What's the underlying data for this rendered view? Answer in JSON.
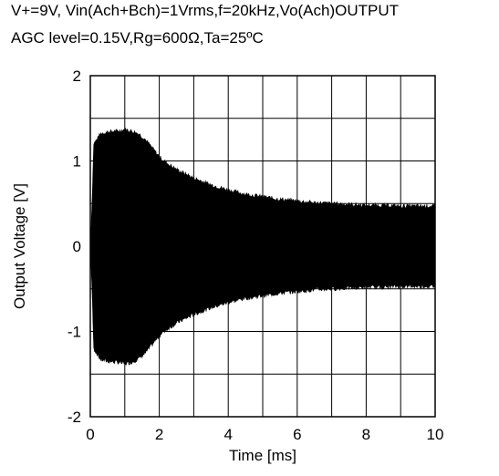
{
  "conditions": {
    "line1": "V+=9V, Vin(Ach+Bch)=1Vrms,f=20kHz,Vo(Ach)OUTPUT",
    "line2": "AGC level=0.15V,Rg=600Ω,Ta=25ºC"
  },
  "chart_data": {
    "type": "area",
    "title": "",
    "xlabel": "Time   [ms]",
    "ylabel": "Output Voltage   [V]",
    "xlim": [
      0,
      10
    ],
    "ylim": [
      -2,
      2
    ],
    "xticks": [
      "0",
      "2",
      "4",
      "6",
      "8",
      "10"
    ],
    "yticks": [
      "2",
      "1",
      "0",
      "-1",
      "-2"
    ],
    "grid": true,
    "series": [
      {
        "color": "#000000",
        "x": [
          0.0,
          0.05,
          0.1,
          0.3,
          0.5,
          0.8,
          1.0,
          1.2,
          1.4,
          1.6,
          1.8,
          2.0,
          2.2,
          2.5,
          3.0,
          3.5,
          4.0,
          4.5,
          5.0,
          5.5,
          6.0,
          6.5,
          7.0,
          7.5,
          8.0,
          8.5,
          9.0,
          9.5,
          10.0
        ],
        "upper": [
          0.0,
          0.5,
          1.2,
          1.32,
          1.34,
          1.35,
          1.37,
          1.35,
          1.32,
          1.25,
          1.15,
          1.05,
          0.98,
          0.9,
          0.8,
          0.72,
          0.66,
          0.61,
          0.58,
          0.55,
          0.53,
          0.51,
          0.5,
          0.49,
          0.48,
          0.48,
          0.47,
          0.47,
          0.47
        ],
        "lower": [
          0.0,
          -0.5,
          -1.2,
          -1.33,
          -1.35,
          -1.36,
          -1.38,
          -1.36,
          -1.32,
          -1.25,
          -1.15,
          -1.05,
          -0.98,
          -0.9,
          -0.8,
          -0.72,
          -0.66,
          -0.61,
          -0.58,
          -0.55,
          -0.53,
          -0.51,
          -0.5,
          -0.49,
          -0.48,
          -0.48,
          -0.47,
          -0.47,
          -0.47
        ]
      }
    ]
  }
}
